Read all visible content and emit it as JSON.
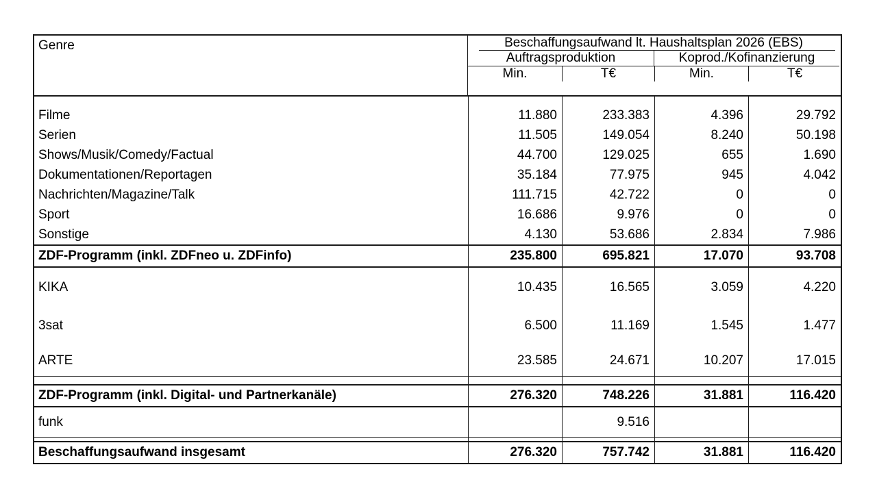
{
  "table": {
    "header": {
      "genre_label": "Genre",
      "group_title": "Beschaffungsaufwand lt. Haushaltsplan 2026 (EBS)",
      "subgroups": [
        {
          "label": "Auftragsproduktion"
        },
        {
          "label": "Koprod./Kofinanzierung"
        }
      ],
      "unit_cols": [
        "Min.",
        "T€",
        "Min.",
        "T€"
      ]
    },
    "genre_rows": [
      {
        "label": "Filme",
        "values": [
          "11.880",
          "233.383",
          "4.396",
          "29.792"
        ]
      },
      {
        "label": "Serien",
        "values": [
          "11.505",
          "149.054",
          "8.240",
          "50.198"
        ]
      },
      {
        "label": "Shows/Musik/Comedy/Factual",
        "values": [
          "44.700",
          "129.025",
          "655",
          "1.690"
        ]
      },
      {
        "label": "Dokumentationen/Reportagen",
        "values": [
          "35.184",
          "77.975",
          "945",
          "4.042"
        ]
      },
      {
        "label": "Nachrichten/Magazine/Talk",
        "values": [
          "111.715",
          "42.722",
          "0",
          "0"
        ]
      },
      {
        "label": "Sport",
        "values": [
          "16.686",
          "9.976",
          "0",
          "0"
        ]
      },
      {
        "label": "Sonstige",
        "values": [
          "4.130",
          "53.686",
          "2.834",
          "7.986"
        ]
      }
    ],
    "total_zdf": {
      "label": "ZDF-Programm (inkl. ZDFneo u. ZDFinfo)",
      "values": [
        "235.800",
        "695.821",
        "17.070",
        "93.708"
      ]
    },
    "channel_rows": [
      {
        "label": "KIKA",
        "values": [
          "10.435",
          "16.565",
          "3.059",
          "4.220"
        ]
      },
      {
        "label": "3sat",
        "values": [
          "6.500",
          "11.169",
          "1.545",
          "1.477"
        ]
      },
      {
        "label": "ARTE",
        "values": [
          "23.585",
          "24.671",
          "10.207",
          "17.015"
        ]
      }
    ],
    "total_partner": {
      "label": "ZDF-Programm (inkl. Digital- und Partnerkanäle)",
      "values": [
        "276.320",
        "748.226",
        "31.881",
        "116.420"
      ]
    },
    "funk_row": {
      "label": "funk",
      "values": [
        "",
        "9.516",
        "",
        ""
      ]
    },
    "total_overall": {
      "label": "Beschaffungsaufwand insgesamt",
      "values": [
        "276.320",
        "757.742",
        "31.881",
        "116.420"
      ]
    },
    "colors": {
      "border": "#1a1a1a",
      "background": "#ffffff",
      "text": "#000000"
    }
  }
}
